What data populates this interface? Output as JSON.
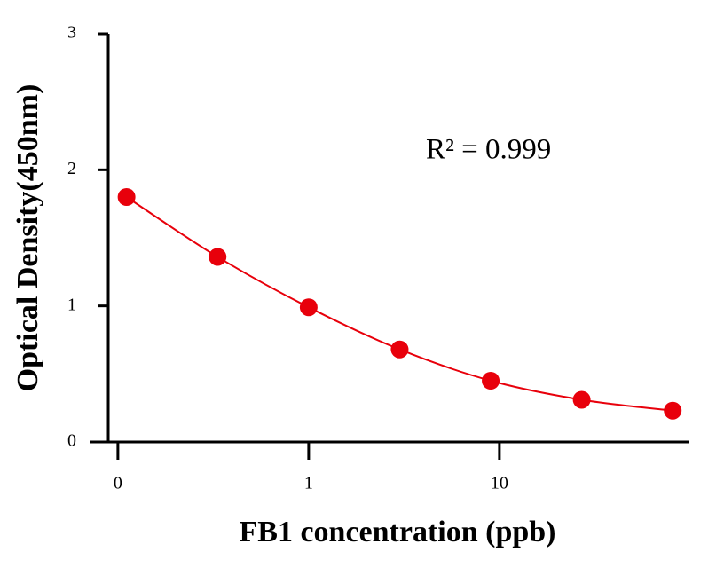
{
  "chart_data": {
    "type": "scatter",
    "xlabel": "FB1 concentration (ppb)",
    "ylabel": "Optical Density(450nm)",
    "annotation": "R² = 0.999",
    "xscale": "log",
    "series": [
      {
        "color": "#e8000b",
        "x": [
          0.111,
          0.333,
          1,
          3,
          9,
          27,
          81
        ],
        "values": [
          1.8,
          1.36,
          0.99,
          0.68,
          0.45,
          0.31,
          0.23
        ]
      }
    ],
    "xlim": [
      0.089,
      98
    ],
    "xticks": [
      {
        "value": 0.1,
        "label": "0"
      },
      1,
      10
    ],
    "ylim": [
      0,
      3
    ],
    "yticks": [
      0,
      1,
      2,
      3
    ]
  }
}
